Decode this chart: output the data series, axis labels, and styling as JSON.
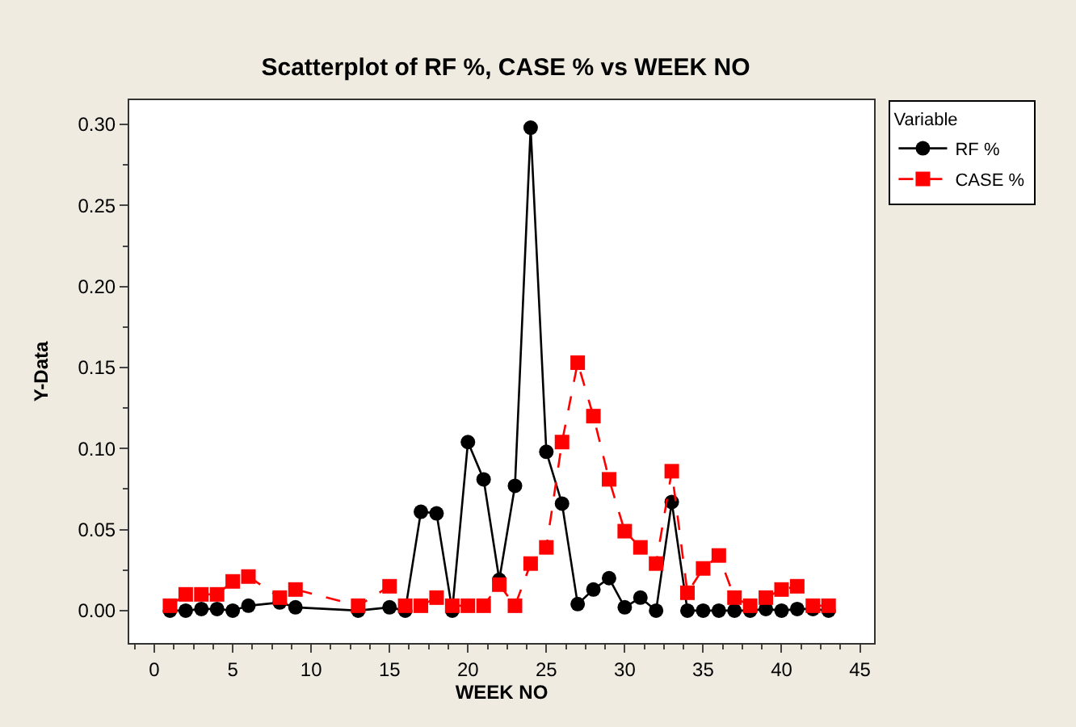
{
  "chart_data": {
    "type": "line",
    "title": "Scatterplot of RF %, CASE % vs WEEK NO",
    "xlabel": "WEEK NO",
    "ylabel": "Y-Data",
    "legend_title": "Variable",
    "legend": "top right",
    "x": [
      1,
      2,
      3,
      4,
      5,
      6,
      8,
      9,
      13,
      15,
      16,
      17,
      18,
      19,
      20,
      21,
      22,
      23,
      24,
      25,
      26,
      27,
      28,
      29,
      30,
      31,
      32,
      33,
      34,
      35,
      36,
      37,
      38,
      39,
      40,
      41,
      42,
      43
    ],
    "series": [
      {
        "name": "RF %",
        "color": "#000000",
        "marker": "circle",
        "line_style": "solid",
        "values": [
          0,
          0,
          0.001,
          0.001,
          0,
          0.003,
          0.005,
          0.002,
          0,
          0.002,
          0,
          0.061,
          0.06,
          0,
          0.104,
          0.081,
          0.019,
          0.077,
          0.298,
          0.098,
          0.066,
          0.004,
          0.013,
          0.02,
          0.002,
          0.008,
          0,
          0.067,
          0,
          0,
          0,
          0,
          0,
          0.001,
          0,
          0.001,
          0.001,
          0
        ]
      },
      {
        "name": "CASE %",
        "color": "#ff0000",
        "marker": "square",
        "line_style": "dashed",
        "values": [
          0.003,
          0.01,
          0.01,
          0.01,
          0.018,
          0.021,
          0.008,
          0.013,
          0.003,
          0.015,
          0.003,
          0.003,
          0.008,
          0.003,
          0.003,
          0.003,
          0.016,
          0.003,
          0.029,
          0.039,
          0.104,
          0.153,
          0.12,
          0.081,
          0.049,
          0.039,
          0.029,
          0.086,
          0.011,
          0.026,
          0.034,
          0.008,
          0.003,
          0.008,
          0.013,
          0.015,
          0.003,
          0.003
        ]
      }
    ],
    "xlim": [
      -1.6,
      45.9
    ],
    "xticks": [
      0,
      5,
      10,
      15,
      20,
      25,
      30,
      35,
      40,
      45
    ],
    "ylim": [
      -0.02,
      0.315
    ],
    "yticks": [
      {
        "value": 0,
        "label": "0.00"
      },
      {
        "value": 0.05,
        "label": "0.05"
      },
      {
        "value": 0.1,
        "label": "0.10"
      },
      {
        "value": 0.15,
        "label": "0.15"
      },
      {
        "value": 0.2,
        "label": "0.20"
      },
      {
        "value": 0.25,
        "label": "0.25"
      },
      {
        "value": 0.3,
        "label": "0.30"
      }
    ]
  }
}
